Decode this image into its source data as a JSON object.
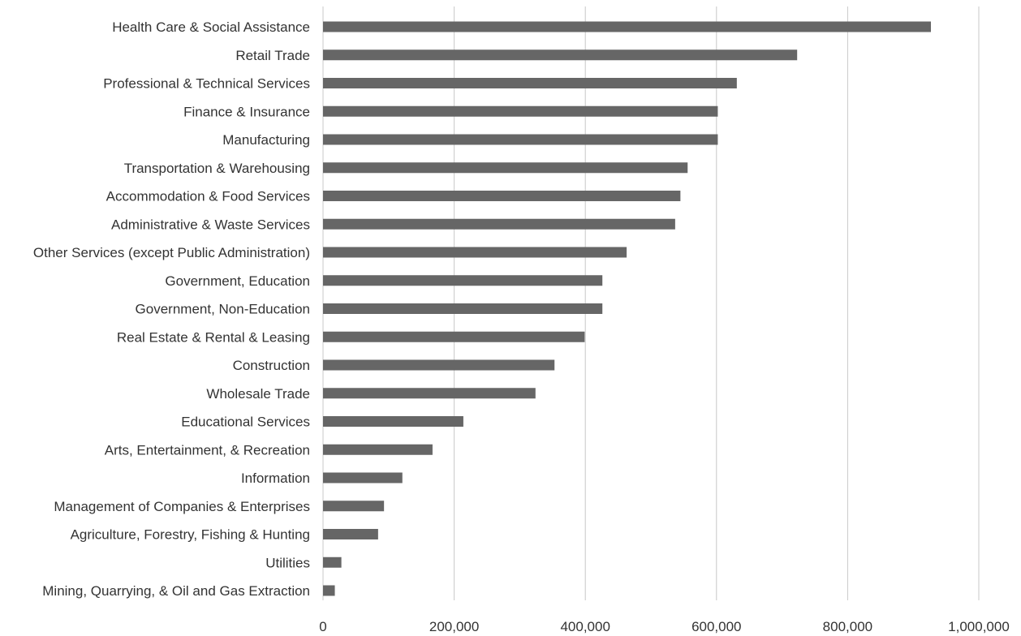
{
  "chart_data": {
    "type": "bar",
    "orientation": "horizontal",
    "title": "",
    "xlabel": "",
    "ylabel": "",
    "xlim": [
      0,
      1000000
    ],
    "x_ticks": [
      0,
      200000,
      400000,
      600000,
      800000,
      1000000
    ],
    "x_tick_labels": [
      "0",
      "200,000",
      "400,000",
      "600,000",
      "800,000",
      "1,000,000"
    ],
    "grid": "vertical",
    "legend": "none",
    "bar_color": "#666666",
    "categories": [
      "Health Care & Social Assistance",
      "Retail Trade",
      "Professional & Technical Services",
      "Finance & Insurance",
      "Manufacturing",
      "Transportation & Warehousing",
      "Accommodation & Food Services",
      "Administrative & Waste Services",
      "Other Services (except Public Administration)",
      "Government, Education",
      "Government, Non-Education",
      "Real Estate & Rental & Leasing",
      "Construction",
      "Wholesale Trade",
      "Educational Services",
      "Arts, Entertainment, & Recreation",
      "Information",
      "Management of Companies & Enterprises",
      "Agriculture, Forestry, Fishing & Hunting",
      "Utilities",
      "Mining, Quarrying, & Oil and Gas Extraction"
    ],
    "values": [
      927000,
      723000,
      631000,
      602000,
      602000,
      556000,
      545000,
      537000,
      463000,
      426000,
      426000,
      399000,
      353000,
      324000,
      214000,
      167000,
      121000,
      93000,
      84000,
      28000,
      18000
    ]
  }
}
